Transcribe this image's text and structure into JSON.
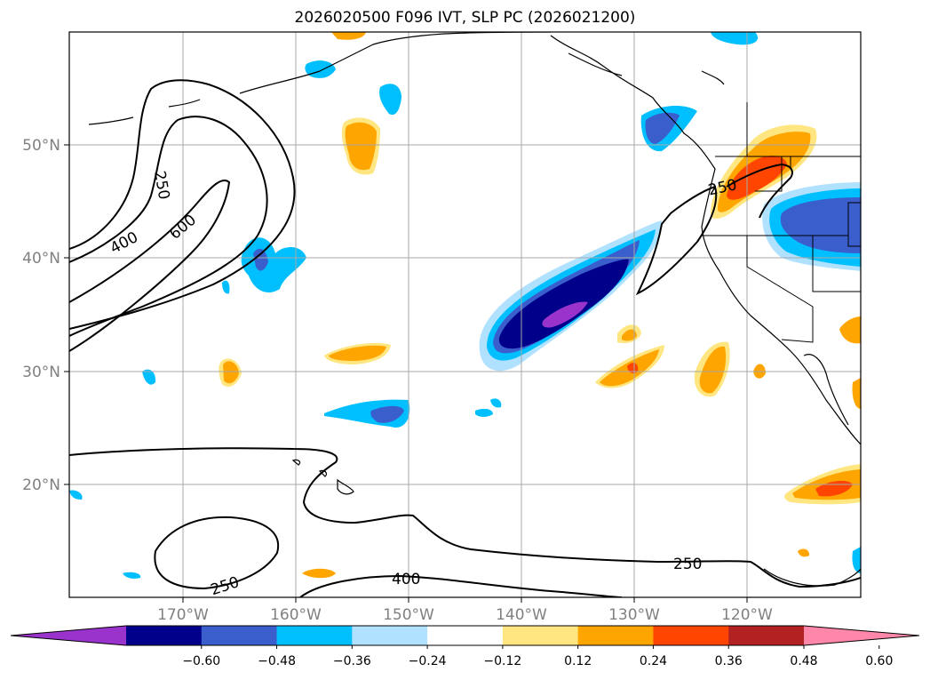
{
  "title": "2026020500 F096 IVT, SLP PC (2026021200)",
  "lon_labels": [
    "170°W",
    "160°W",
    "150°W",
    "140°W",
    "130°W",
    "120°W"
  ],
  "lat_labels": [
    "50°N",
    "40°N",
    "30°N",
    "20°N"
  ],
  "contour_labels": [
    "250",
    "400",
    "600",
    "250",
    "250",
    "400",
    "250"
  ],
  "colorbar": {
    "ticks": [
      "−0.60",
      "−0.48",
      "−0.36",
      "−0.24",
      "−0.12",
      "0.12",
      "0.24",
      "0.36",
      "0.48",
      "0.60"
    ],
    "colors": [
      "#9933cc",
      "#00008b",
      "#3a5fcd",
      "#00bfff",
      "#b0e2ff",
      "#ffffff",
      "#ffe680",
      "#ffa500",
      "#ff4500",
      "#b22222",
      "#ff88aa"
    ]
  },
  "colors": {
    "neg_strong": "#00008b",
    "neg_mid": "#3a5fcd",
    "neg_light": "#00bfff",
    "neg_faint": "#b0e2ff",
    "neg_extreme": "#9933cc",
    "pos_faint": "#ffe680",
    "pos_mid": "#ffa500",
    "pos_strong": "#ff4500"
  }
}
